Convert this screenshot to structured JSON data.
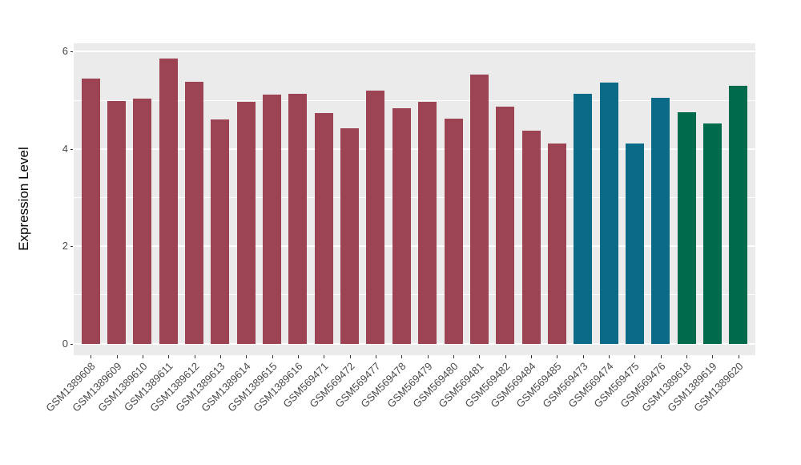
{
  "chart_data": {
    "type": "bar",
    "title": "",
    "xlabel": "",
    "ylabel": "Expression Level",
    "ylim": [
      0,
      6.17
    ],
    "yticks": [
      0,
      2,
      4,
      6
    ],
    "yticks_minor": [
      1,
      3,
      5
    ],
    "grid": true,
    "legend": false,
    "categories": [
      "GSM1389608",
      "GSM1389609",
      "GSM1389610",
      "GSM1389611",
      "GSM1389612",
      "GSM1389613",
      "GSM1389614",
      "GSM1389615",
      "GSM1389616",
      "GSM569471",
      "GSM569472",
      "GSM569477",
      "GSM569478",
      "GSM569479",
      "GSM569480",
      "GSM569481",
      "GSM569482",
      "GSM569484",
      "GSM569485",
      "GSM569473",
      "GSM569474",
      "GSM569475",
      "GSM569476",
      "GSM1389618",
      "GSM1389619",
      "GSM1389620"
    ],
    "values": [
      5.45,
      4.98,
      5.04,
      5.85,
      5.38,
      4.6,
      4.96,
      5.12,
      5.13,
      4.74,
      4.43,
      5.2,
      4.84,
      4.97,
      4.63,
      5.52,
      4.87,
      4.38,
      4.12,
      5.13,
      5.37,
      4.12,
      5.05,
      4.76,
      4.53,
      5.3
    ],
    "groups": [
      "red",
      "red",
      "red",
      "red",
      "red",
      "red",
      "red",
      "red",
      "red",
      "red",
      "red",
      "red",
      "red",
      "red",
      "red",
      "red",
      "red",
      "red",
      "red",
      "teal",
      "teal",
      "teal",
      "teal",
      "green",
      "green",
      "green"
    ],
    "palette": {
      "red": "#9C4454",
      "teal": "#0B6A88",
      "green": "#006B4C"
    },
    "colors": {
      "panel_background": "#EBEBEB",
      "grid": "#FFFFFF",
      "tick_text": "#4A4A4A",
      "axis_title_text": "#000000"
    }
  }
}
